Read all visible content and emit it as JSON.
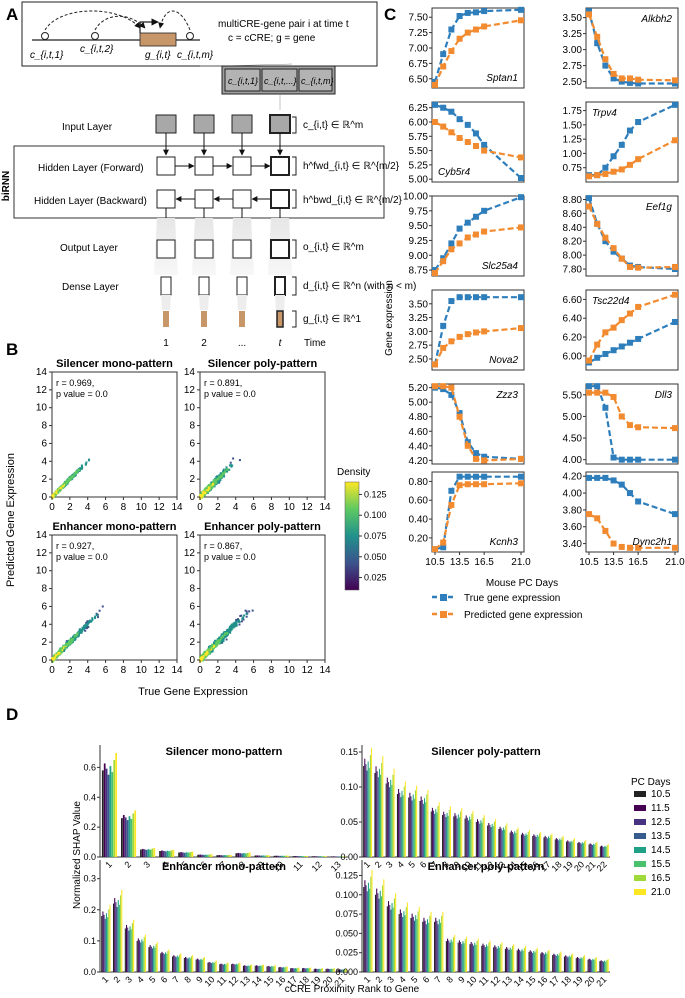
{
  "panels": {
    "A": "A",
    "B": "B",
    "C": "C",
    "D": "D"
  },
  "panelA": {
    "desc_line1": "multiCRE-gene pair i at time t",
    "desc_line2": "c = cCRE; g = gene",
    "seq_labels": [
      "c_{i,t,1}",
      "c_{i,t,2}",
      "g_{i,t}",
      "c_{i,t,m}"
    ],
    "input_boxes": [
      "c_{i,t,1}",
      "c_{i,t,...}",
      "c_{i,t,m}"
    ],
    "layers": [
      "Input Layer",
      "Hidden Layer (Forward)",
      "Hidden Layer (Backward)",
      "Output Layer",
      "Dense Layer"
    ],
    "birnn_label": "biRNN",
    "annotations": [
      "c_{i,t} ∈ ℝ^m",
      "h^fwd_{i,t} ∈ ℝ^{m/2}",
      "h^bwd_{i,t} ∈ ℝ^{m/2}",
      "o_{i,t} ∈ ℝ^m",
      "d_{i,t} ∈ ℝ^n (with n < m)",
      "g_{i,t} ∈ ℝ^1"
    ],
    "time_ticks": [
      "1",
      "2",
      "...",
      "t"
    ],
    "time_label": "Time"
  },
  "panelB": {
    "ylabel": "Predicted Gene Expression",
    "xlabel": "True Gene Expression",
    "ticks": [
      "0",
      "2",
      "4",
      "6",
      "8",
      "10",
      "12",
      "14"
    ],
    "plots": [
      {
        "title": "Silencer mono-pattern",
        "r": "r = 0.969,",
        "p": "p value = 0.0",
        "spread": 0.55,
        "scale": 1.0
      },
      {
        "title": "Silencer poly-pattern",
        "r": "r = 0.891,",
        "p": "p value = 0.0",
        "spread": 1.0,
        "scale": 1.0
      },
      {
        "title": "Enhancer mono-pattern",
        "r": "r = 0.927,",
        "p": "p value = 0.0",
        "spread": 0.8,
        "scale": 1.4
      },
      {
        "title": "Enhancer poly-pattern",
        "r": "r = 0.867,",
        "p": "p value = 0.0",
        "spread": 1.1,
        "scale": 1.4
      }
    ],
    "colorbar_title": "Density",
    "colorbar_ticks": [
      "0.125",
      "0.100",
      "0.075",
      "0.050",
      "0.025"
    ],
    "colorbar_tick_values": [
      0.125,
      0.1,
      0.075,
      0.05,
      0.025
    ],
    "colorbar_range": [
      0.01,
      0.14
    ]
  },
  "panelC": {
    "ylabel": "Gene expression",
    "xlabel": "Mouse PC Days",
    "x": [
      10.5,
      11.5,
      12.5,
      13.5,
      14.5,
      15.5,
      16.5,
      21.0
    ],
    "xticks": [
      "10.5",
      "13.5",
      "16.5",
      "21.0"
    ],
    "legend": [
      "True gene expression",
      "Predicted gene expression"
    ],
    "colors": {
      "true": "#2e7ebc",
      "pred": "#f28b30"
    },
    "genes": [
      {
        "name": "Sptan1",
        "pos": "bottom-right",
        "ylim": [
          6.35,
          7.65
        ],
        "yticks": [
          "6.50",
          "6.75",
          "7.00",
          "7.25",
          "7.50"
        ],
        "yvals": [
          6.5,
          6.75,
          7.0,
          7.25,
          7.5
        ],
        "true": [
          6.45,
          6.9,
          7.3,
          7.52,
          7.57,
          7.58,
          7.6,
          7.62
        ],
        "pred": [
          6.4,
          6.7,
          6.95,
          7.15,
          7.25,
          7.3,
          7.35,
          7.45
        ]
      },
      {
        "name": "Alkbh2",
        "pos": "top-right",
        "ylim": [
          2.4,
          3.65
        ],
        "yticks": [
          "2.50",
          "2.75",
          "3.00",
          "3.25",
          "3.50"
        ],
        "yvals": [
          2.5,
          2.75,
          3.0,
          3.25,
          3.5
        ],
        "true": [
          3.6,
          3.1,
          2.75,
          2.55,
          2.5,
          2.48,
          2.47,
          2.47
        ],
        "pred": [
          3.55,
          3.2,
          2.85,
          2.62,
          2.55,
          2.55,
          2.53,
          2.52
        ]
      },
      {
        "name": "Cyb5r4",
        "pos": "bottom-left",
        "ylim": [
          4.95,
          6.35
        ],
        "yticks": [
          "5.00",
          "5.25",
          "5.50",
          "5.75",
          "6.00",
          "6.25"
        ],
        "yvals": [
          5.0,
          5.25,
          5.5,
          5.75,
          6.0,
          6.25
        ],
        "true": [
          6.3,
          6.25,
          6.18,
          6.05,
          5.95,
          5.8,
          5.6,
          5.02
        ],
        "pred": [
          6.0,
          5.92,
          5.82,
          5.72,
          5.65,
          5.58,
          5.5,
          5.38
        ]
      },
      {
        "name": "Trpv4",
        "pos": "top-left",
        "ylim": [
          0.5,
          1.9
        ],
        "yticks": [
          "0.75",
          "1.00",
          "1.25",
          "1.50",
          "1.75"
        ],
        "yvals": [
          0.75,
          1.0,
          1.25,
          1.5,
          1.75
        ],
        "true": [
          0.62,
          0.62,
          0.75,
          0.95,
          1.15,
          1.4,
          1.55,
          1.85
        ],
        "pred": [
          0.6,
          0.62,
          0.64,
          0.68,
          0.72,
          0.8,
          0.9,
          1.23
        ]
      },
      {
        "name": "Slc25a4",
        "pos": "bottom-right",
        "ylim": [
          8.65,
          10.0
        ],
        "yticks": [
          "8.75",
          "9.00",
          "9.25",
          "9.50",
          "9.75",
          "10.00"
        ],
        "yvals": [
          8.75,
          9.0,
          9.25,
          9.5,
          9.75,
          10.0
        ],
        "true": [
          8.75,
          8.95,
          9.2,
          9.45,
          9.55,
          9.65,
          9.75,
          9.98
        ],
        "pred": [
          8.7,
          8.9,
          9.1,
          9.2,
          9.3,
          9.35,
          9.4,
          9.47
        ]
      },
      {
        "name": "Eef1g",
        "pos": "top-right",
        "ylim": [
          7.7,
          8.85
        ],
        "yticks": [
          "7.80",
          "8.00",
          "8.20",
          "8.40",
          "8.60",
          "8.80"
        ],
        "yvals": [
          7.8,
          8.0,
          8.2,
          8.4,
          8.6,
          8.8
        ],
        "true": [
          8.82,
          8.45,
          8.2,
          8.05,
          7.95,
          7.85,
          7.83,
          7.8
        ],
        "pred": [
          8.7,
          8.45,
          8.25,
          8.1,
          7.95,
          7.83,
          7.82,
          7.83
        ]
      },
      {
        "name": "Nova2",
        "pos": "bottom-right",
        "ylim": [
          2.3,
          3.75
        ],
        "yticks": [
          "2.50",
          "2.75",
          "3.00",
          "3.25",
          "3.50"
        ],
        "yvals": [
          2.5,
          2.75,
          3.0,
          3.25,
          3.5
        ],
        "true": [
          2.4,
          3.1,
          3.55,
          3.62,
          3.62,
          3.62,
          3.62,
          3.62
        ],
        "pred": [
          2.4,
          2.7,
          2.82,
          2.9,
          2.95,
          2.98,
          3.0,
          3.06
        ]
      },
      {
        "name": "Tsc22d4",
        "pos": "top-left",
        "ylim": [
          5.85,
          6.7
        ],
        "yticks": [
          "6.00",
          "6.20",
          "6.40",
          "6.60"
        ],
        "yvals": [
          6.0,
          6.2,
          6.4,
          6.6
        ],
        "true": [
          5.93,
          5.98,
          6.02,
          6.06,
          6.1,
          6.14,
          6.18,
          6.36
        ],
        "pred": [
          5.95,
          6.12,
          6.25,
          6.3,
          6.38,
          6.45,
          6.52,
          6.65
        ]
      },
      {
        "name": "Zzz3",
        "pos": "top-right",
        "ylim": [
          4.15,
          5.25
        ],
        "yticks": [
          "4.20",
          "4.40",
          "4.60",
          "4.80",
          "5.00",
          "5.20"
        ],
        "yvals": [
          4.2,
          4.4,
          4.6,
          4.8,
          5.0,
          5.2
        ],
        "true": [
          5.2,
          5.18,
          5.1,
          4.85,
          4.45,
          4.3,
          4.25,
          4.22
        ],
        "pred": [
          5.22,
          5.22,
          5.2,
          4.8,
          4.4,
          4.22,
          4.2,
          4.22
        ]
      },
      {
        "name": "Dll3",
        "pos": "top-right",
        "ylim": [
          3.9,
          5.75
        ],
        "yticks": [
          "4.00",
          "4.50",
          "5.00",
          "5.50"
        ],
        "yvals": [
          4.0,
          4.5,
          5.0,
          5.5
        ],
        "true": [
          5.7,
          5.7,
          5.2,
          4.05,
          4.0,
          4.0,
          4.0,
          4.0
        ],
        "pred": [
          5.55,
          5.55,
          5.55,
          5.45,
          5.0,
          4.8,
          4.75,
          4.73
        ]
      },
      {
        "name": "Kcnh3",
        "pos": "bottom-right",
        "ylim": [
          0.05,
          0.9
        ],
        "yticks": [
          "0.20",
          "0.40",
          "0.60",
          "0.80"
        ],
        "yvals": [
          0.2,
          0.4,
          0.6,
          0.8
        ],
        "true": [
          0.08,
          0.1,
          0.7,
          0.85,
          0.85,
          0.85,
          0.85,
          0.85
        ],
        "pred": [
          0.08,
          0.15,
          0.55,
          0.76,
          0.77,
          0.77,
          0.77,
          0.78
        ]
      },
      {
        "name": "Dync2h1",
        "pos": "bottom-right",
        "ylim": [
          3.3,
          4.25
        ],
        "yticks": [
          "3.40",
          "3.60",
          "3.80",
          "4.00",
          "4.20"
        ],
        "yvals": [
          3.4,
          3.6,
          3.8,
          4.0,
          4.2
        ],
        "true": [
          4.18,
          4.18,
          4.18,
          4.15,
          4.1,
          4.0,
          3.9,
          3.75
        ],
        "pred": [
          3.75,
          3.7,
          3.55,
          3.4,
          3.36,
          3.35,
          3.35,
          3.35
        ]
      }
    ]
  },
  "panelD": {
    "ylabel": "Normalized SHAP Value",
    "xlabel": "cCRE Proximity Rank to Gene",
    "legend_title": "PC Days",
    "days": [
      "10.5",
      "11.5",
      "12.5",
      "13.5",
      "14.5",
      "15.5",
      "16.5",
      "21.0"
    ],
    "colors": [
      "#222222",
      "#440154",
      "#46327e",
      "#365c8d",
      "#1fa187",
      "#4ac16d",
      "#a0da39",
      "#fde725"
    ],
    "plots": [
      {
        "title": "Silencer mono-pattern",
        "n": 13,
        "ymax": 0.75,
        "yticks": [
          0,
          0.2,
          0.4,
          0.6
        ],
        "ytick_labels": [
          "0.0",
          "0.2",
          "0.4",
          "0.6"
        ],
        "base": [
          0.58,
          0.26,
          0.05,
          0.04,
          0.03,
          0.015,
          0.012,
          0.025,
          0.01,
          0.008,
          0.006,
          0.005,
          0.004
        ]
      },
      {
        "title": "Silencer poly-pattern",
        "n": 22,
        "ymax": 0.16,
        "yticks": [
          0,
          0.05,
          0.1,
          0.15
        ],
        "ytick_labels": [
          "0.00",
          "0.05",
          "0.10",
          "0.15"
        ],
        "base": [
          0.13,
          0.12,
          0.105,
          0.09,
          0.085,
          0.08,
          0.065,
          0.06,
          0.058,
          0.055,
          0.05,
          0.045,
          0.04,
          0.035,
          0.032,
          0.03,
          0.028,
          0.025,
          0.022,
          0.02,
          0.018,
          0.015
        ]
      },
      {
        "title": "Enhancer mono-pattern",
        "n": 21,
        "ymax": 0.36,
        "yticks": [
          0,
          0.1,
          0.2,
          0.3
        ],
        "ytick_labels": [
          "0.0",
          "0.1",
          "0.2",
          "0.3"
        ],
        "base": [
          0.18,
          0.22,
          0.14,
          0.1,
          0.08,
          0.06,
          0.05,
          0.045,
          0.04,
          0.03,
          0.025,
          0.025,
          0.02,
          0.02,
          0.018,
          0.015,
          0.012,
          0.012,
          0.01,
          0.01,
          0.008
        ]
      },
      {
        "title": "Enhancer poly-pattern",
        "n": 21,
        "ymax": 0.145,
        "yticks": [
          0,
          0.025,
          0.05,
          0.075,
          0.1,
          0.125
        ],
        "ytick_labels": [
          "0.000",
          "0.025",
          "0.050",
          "0.075",
          "0.100",
          "0.125"
        ],
        "base": [
          0.11,
          0.1,
          0.085,
          0.075,
          0.07,
          0.065,
          0.065,
          0.04,
          0.038,
          0.036,
          0.034,
          0.032,
          0.03,
          0.028,
          0.026,
          0.024,
          0.022,
          0.02,
          0.018,
          0.016,
          0.014
        ]
      }
    ]
  }
}
